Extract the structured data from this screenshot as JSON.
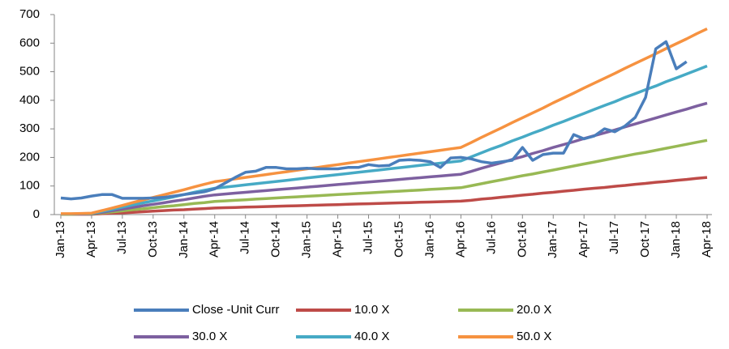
{
  "chart_data": {
    "type": "line",
    "categories": [
      "Jan-13",
      null,
      null,
      "Apr-13",
      null,
      null,
      "Jul-13",
      null,
      null,
      "Oct-13",
      null,
      null,
      "Jan-14",
      null,
      null,
      "Apr-14",
      null,
      null,
      "Jul-14",
      null,
      null,
      "Oct-14",
      null,
      null,
      "Jan-15",
      null,
      null,
      "Apr-15",
      null,
      null,
      "Jul-15",
      null,
      null,
      "Oct-15",
      null,
      null,
      "Jan-16",
      null,
      null,
      "Apr-16",
      null,
      null,
      "Jul-16",
      null,
      null,
      "Oct-16",
      null,
      null,
      "Jan-17",
      null,
      null,
      "Apr-17",
      null,
      null,
      "Jul-17",
      null,
      null,
      "Oct-17",
      null,
      null,
      "Jan-18",
      null,
      null,
      "Apr-18"
    ],
    "series": [
      {
        "name": "Close -Unit Curr",
        "color": "#4a7ebb",
        "values": [
          58,
          55,
          58,
          65,
          70,
          70,
          57,
          57,
          57,
          58,
          60,
          65,
          70,
          75,
          80,
          90,
          110,
          130,
          148,
          152,
          165,
          165,
          160,
          160,
          162,
          160,
          160,
          160,
          165,
          165,
          175,
          170,
          172,
          190,
          192,
          190,
          185,
          165,
          198,
          200,
          195,
          185,
          180,
          185,
          190,
          235,
          190,
          210,
          215,
          215,
          280,
          265,
          275,
          300,
          290,
          310,
          340,
          410,
          580,
          605,
          510,
          535,
          null,
          null
        ]
      },
      {
        "name": "10.0 X",
        "color": "#be4b48",
        "values": [
          1,
          1,
          1,
          1,
          3,
          5,
          6,
          8,
          10,
          12,
          14,
          16,
          17,
          19,
          21,
          23,
          24,
          25,
          26,
          27,
          28,
          29,
          30,
          31,
          32,
          33,
          34,
          35,
          36,
          37,
          38,
          39,
          40,
          41,
          42,
          43,
          44,
          45,
          46,
          47,
          50,
          54,
          57,
          61,
          64,
          68,
          71,
          75,
          78,
          82,
          85,
          89,
          92,
          95,
          99,
          102,
          106,
          109,
          113,
          116,
          120,
          123,
          127,
          130
        ]
      },
      {
        "name": "20.0 X",
        "color": "#98b954",
        "values": [
          1,
          1,
          2,
          2,
          6,
          9,
          13,
          17,
          20,
          24,
          28,
          31,
          35,
          39,
          42,
          46,
          48,
          50,
          52,
          54,
          56,
          58,
          60,
          62,
          64,
          66,
          68,
          70,
          72,
          74,
          76,
          78,
          80,
          82,
          84,
          86,
          88,
          90,
          92,
          94,
          101,
          108,
          115,
          122,
          129,
          136,
          142,
          149,
          156,
          163,
          170,
          177,
          184,
          191,
          198,
          205,
          212,
          218,
          225,
          232,
          239,
          246,
          253,
          260
        ]
      },
      {
        "name": "30.0 X",
        "color": "#7d60a0",
        "values": [
          2,
          2,
          2,
          3,
          8,
          14,
          19,
          25,
          31,
          36,
          41,
          47,
          52,
          58,
          64,
          69,
          72,
          75,
          78,
          81,
          84,
          87,
          90,
          93,
          96,
          99,
          102,
          105,
          108,
          111,
          114,
          117,
          120,
          123,
          126,
          129,
          132,
          135,
          138,
          141,
          151,
          162,
          172,
          182,
          193,
          203,
          214,
          224,
          235,
          245,
          255,
          266,
          276,
          286,
          296,
          307,
          317,
          328,
          338,
          349,
          359,
          369,
          380,
          390
        ]
      },
      {
        "name": "40.0 X",
        "color": "#46aac5",
        "values": [
          2,
          2,
          3,
          4,
          11,
          18,
          26,
          34,
          41,
          48,
          55,
          62,
          70,
          78,
          85,
          92,
          96,
          100,
          104,
          108,
          112,
          116,
          120,
          124,
          128,
          132,
          136,
          140,
          144,
          148,
          152,
          156,
          160,
          164,
          168,
          172,
          176,
          180,
          184,
          188,
          202,
          216,
          230,
          243,
          258,
          271,
          285,
          298,
          313,
          326,
          340,
          354,
          368,
          382,
          395,
          410,
          423,
          437,
          450,
          465,
          478,
          492,
          506,
          520
        ]
      },
      {
        "name": "50.0 X",
        "color": "#f69240",
        "values": [
          3,
          3,
          4,
          5,
          14,
          23,
          32,
          42,
          51,
          60,
          69,
          78,
          87,
          97,
          106,
          115,
          120,
          125,
          130,
          135,
          140,
          145,
          150,
          155,
          160,
          165,
          170,
          175,
          180,
          185,
          190,
          195,
          200,
          205,
          210,
          215,
          220,
          225,
          230,
          235,
          252,
          270,
          287,
          304,
          322,
          339,
          356,
          373,
          391,
          408,
          425,
          443,
          460,
          477,
          494,
          512,
          529,
          546,
          563,
          581,
          598,
          615,
          633,
          650
        ]
      }
    ],
    "ylim": [
      0,
      700
    ],
    "yticks": [
      0,
      100,
      200,
      300,
      400,
      500,
      600,
      700
    ],
    "legend": "bottom"
  }
}
